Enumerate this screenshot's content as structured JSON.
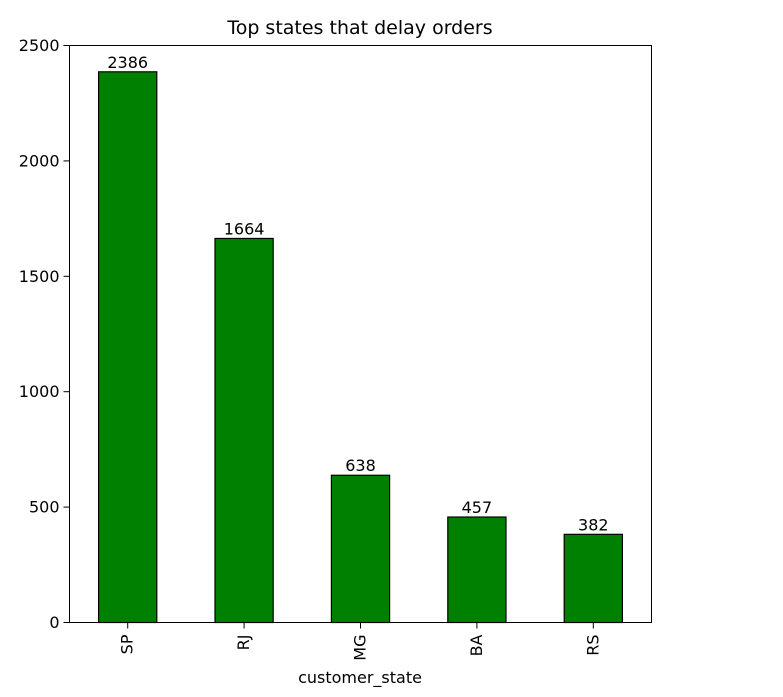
{
  "chart_data": {
    "type": "bar",
    "title": "Top states that delay orders",
    "xlabel": "customer_state",
    "ylabel": "",
    "categories": [
      "SP",
      "RJ",
      "MG",
      "BA",
      "RS"
    ],
    "values": [
      2386,
      1664,
      638,
      457,
      382
    ],
    "data_labels": [
      "2386",
      "1664",
      "638",
      "457",
      "382"
    ],
    "ylim": [
      0,
      2500
    ],
    "yticks": [
      0,
      500,
      1000,
      1500,
      2000,
      2500
    ],
    "ytick_labels": [
      "0",
      "500",
      "1000",
      "1500",
      "2000",
      "2500"
    ],
    "grid": false,
    "legend": "none",
    "bar_color": "#008000",
    "edge_color": "#000000"
  }
}
